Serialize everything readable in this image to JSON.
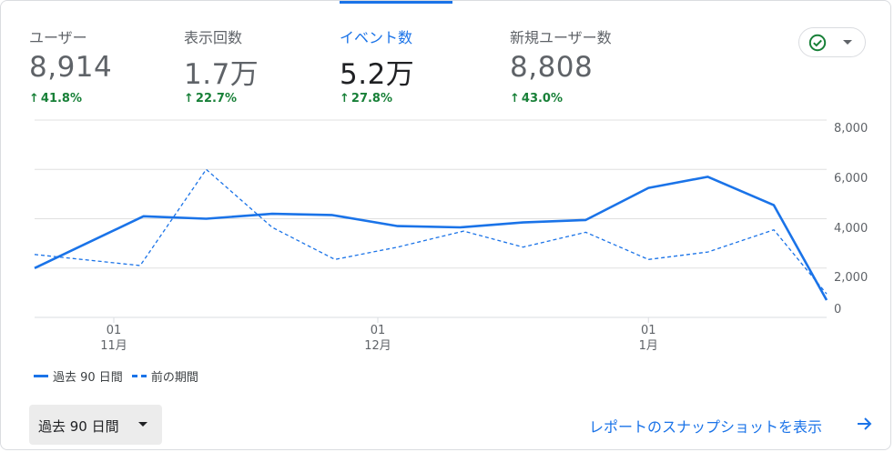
{
  "metrics": [
    {
      "label": "ユーザー",
      "value": "8,914",
      "delta": "41.8%"
    },
    {
      "label": "表示回数",
      "value": "1.7万",
      "delta": "22.7%"
    },
    {
      "label": "イベント数",
      "value": "5.2万",
      "delta": "27.8%"
    },
    {
      "label": "新規ユーザー数",
      "value": "8,808",
      "delta": "43.0%"
    }
  ],
  "active_metric_index": 2,
  "status_chip": {
    "icon": "check-circle-icon",
    "caret": "chevron-down-icon",
    "color": "#188038"
  },
  "chart_data": {
    "type": "line",
    "ylim": [
      0,
      8000
    ],
    "yticks": [
      "8,000",
      "6,000",
      "4,000",
      "2,000",
      "0"
    ],
    "ytick_values": [
      8000,
      6000,
      4000,
      2000,
      0
    ],
    "xtick_labels": [
      {
        "day": "01",
        "month": "11月",
        "index": 2.4
      },
      {
        "day": "01",
        "month": "12月",
        "index": 10.4
      },
      {
        "day": "01",
        "month": "1月",
        "index": 18.6
      }
    ],
    "x_count": 25,
    "series": [
      {
        "name": "過去 90 日間",
        "style": "solid",
        "color": "#1a73e8",
        "points": [
          [
            0,
            2000
          ],
          [
            3.3,
            4100
          ],
          [
            5.2,
            4000
          ],
          [
            7.2,
            4200
          ],
          [
            9,
            4150
          ],
          [
            11,
            3700
          ],
          [
            12.9,
            3650
          ],
          [
            14.8,
            3850
          ],
          [
            16.7,
            3950
          ],
          [
            18.6,
            5250
          ],
          [
            20.4,
            5700
          ],
          [
            22.4,
            4550
          ],
          [
            24,
            700
          ]
        ]
      },
      {
        "name": "前の期間",
        "style": "dashed",
        "color": "#1a73e8",
        "points": [
          [
            0,
            2550
          ],
          [
            3.2,
            2100
          ],
          [
            5.2,
            6000
          ],
          [
            7.2,
            3650
          ],
          [
            9.1,
            2350
          ],
          [
            11,
            2850
          ],
          [
            13,
            3500
          ],
          [
            14.8,
            2850
          ],
          [
            16.7,
            3450
          ],
          [
            18.6,
            2350
          ],
          [
            20.4,
            2650
          ],
          [
            22.4,
            3550
          ],
          [
            24,
            950
          ]
        ]
      }
    ]
  },
  "legend": [
    {
      "label": "過去 90 日間",
      "style": "solid"
    },
    {
      "label": "前の期間",
      "style": "dashed"
    }
  ],
  "date_range_button": {
    "label": "過去 90 日間"
  },
  "report_link": {
    "label": "レポートのスナップショットを表示"
  }
}
